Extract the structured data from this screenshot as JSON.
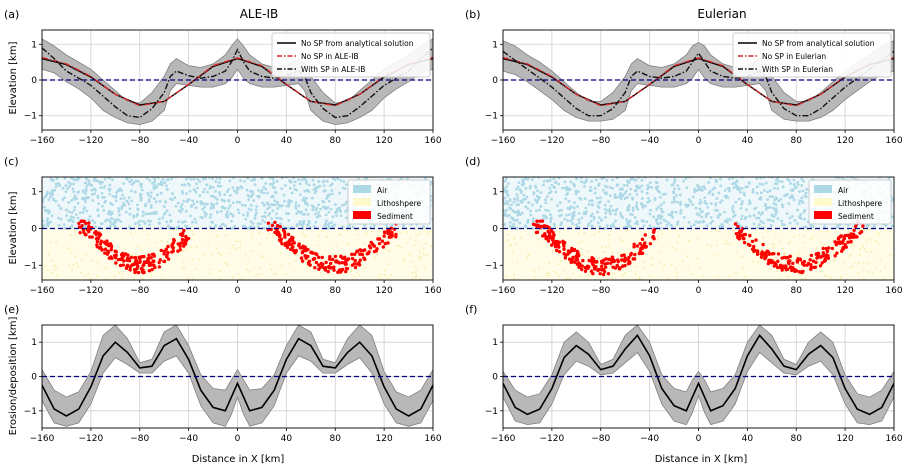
{
  "figure": {
    "col_titles": [
      "ALE-IB",
      "Eulerian"
    ],
    "xlabel": "Distance in X [km]",
    "row_ylabels": [
      "Elevation [km]",
      "Elevation [km]",
      "Erosion/deposition [km]"
    ],
    "x_ticks": [
      -160,
      -120,
      -80,
      -40,
      0,
      40,
      80,
      120,
      160
    ],
    "colors": {
      "analytical": "#000000",
      "nosp": "#d62728",
      "withsp": "#111111",
      "band": "#b8b8b8",
      "sea": "#000080",
      "air": "#add8e6",
      "litho": "#fffacd",
      "sediment": "#ff0000"
    }
  },
  "chart_data": [
    {
      "panel": "(a)",
      "title": "ALE-IB",
      "type": "line",
      "xlim": [
        -160,
        160
      ],
      "ylim": [
        -1.4,
        1.4
      ],
      "yticks": [
        -1,
        0,
        1
      ],
      "ylabel": "Elevation [km]",
      "grid": true,
      "legend": "top-right",
      "legend_entries": [
        "No SP from analytical solution",
        "No SP in ALE-IB",
        "With SP in ALE-IB"
      ],
      "series": [
        {
          "name": "No SP from analytical solution",
          "style": "solid",
          "x": [
            -160,
            -140,
            -120,
            -100,
            -80,
            -60,
            -40,
            -20,
            0,
            20,
            40,
            60,
            80,
            100,
            120,
            140,
            160
          ],
          "y": [
            0.6,
            0.43,
            0.08,
            -0.4,
            -0.7,
            -0.6,
            -0.13,
            0.38,
            0.6,
            0.38,
            -0.13,
            -0.6,
            -0.7,
            -0.4,
            0.08,
            0.43,
            0.6
          ]
        },
        {
          "name": "No SP in ALE-IB",
          "style": "dashdot",
          "x": [
            -160,
            -140,
            -120,
            -100,
            -80,
            -60,
            -40,
            -20,
            0,
            20,
            40,
            60,
            80,
            100,
            120,
            140,
            160
          ],
          "y": [
            0.63,
            0.45,
            0.1,
            -0.4,
            -0.72,
            -0.6,
            -0.12,
            0.4,
            0.62,
            0.4,
            -0.12,
            -0.6,
            -0.72,
            -0.4,
            0.1,
            0.45,
            0.63
          ]
        },
        {
          "name": "With SP in ALE-IB",
          "style": "dashdot",
          "x": [
            -160,
            -150,
            -140,
            -130,
            -120,
            -110,
            -100,
            -90,
            -80,
            -70,
            -60,
            -55,
            -50,
            -40,
            -30,
            -20,
            -10,
            -5,
            0,
            5,
            10,
            20,
            30,
            40,
            50,
            55,
            60,
            70,
            80,
            90,
            100,
            110,
            120,
            130,
            140,
            150,
            160
          ],
          "y": [
            0.9,
            0.6,
            0.25,
            0.05,
            -0.15,
            -0.45,
            -0.75,
            -1.0,
            -1.05,
            -0.8,
            -0.35,
            0.1,
            0.25,
            0.12,
            0.05,
            0.1,
            0.25,
            0.5,
            0.85,
            0.5,
            0.25,
            0.1,
            0.05,
            0.12,
            0.25,
            0.1,
            -0.35,
            -0.8,
            -1.05,
            -1.0,
            -0.75,
            -0.45,
            -0.15,
            0.05,
            0.25,
            0.6,
            0.9
          ]
        }
      ],
      "band": {
        "x": [
          -160,
          -150,
          -140,
          -130,
          -120,
          -110,
          -100,
          -90,
          -80,
          -70,
          -60,
          -55,
          -50,
          -40,
          -30,
          -20,
          -10,
          -5,
          0,
          5,
          10,
          20,
          30,
          40,
          50,
          55,
          60,
          70,
          80,
          90,
          100,
          110,
          120,
          130,
          140,
          150,
          160
        ],
        "upper": [
          1.15,
          0.95,
          0.7,
          0.5,
          0.3,
          0.0,
          -0.3,
          -0.6,
          -0.65,
          -0.35,
          0.1,
          0.45,
          0.6,
          0.4,
          0.35,
          0.45,
          0.7,
          0.95,
          1.15,
          0.95,
          0.7,
          0.45,
          0.35,
          0.4,
          0.6,
          0.45,
          0.1,
          -0.35,
          -0.65,
          -0.6,
          -0.3,
          0.0,
          0.3,
          0.5,
          0.7,
          0.95,
          1.15
        ],
        "lower": [
          0.3,
          0.2,
          -0.05,
          -0.25,
          -0.5,
          -0.85,
          -1.05,
          -1.2,
          -1.25,
          -1.15,
          -0.85,
          -0.3,
          -0.1,
          -0.15,
          -0.2,
          -0.2,
          -0.1,
          0.05,
          0.3,
          0.05,
          -0.1,
          -0.2,
          -0.2,
          -0.15,
          -0.1,
          -0.3,
          -0.85,
          -1.15,
          -1.25,
          -1.2,
          -1.05,
          -0.85,
          -0.5,
          -0.25,
          -0.05,
          0.2,
          0.3
        ]
      },
      "hline": 0
    },
    {
      "panel": "(b)",
      "title": "Eulerian",
      "type": "line",
      "xlim": [
        -160,
        160
      ],
      "ylim": [
        -1.4,
        1.4
      ],
      "yticks": [
        -1,
        0,
        1
      ],
      "ylabel": "",
      "grid": true,
      "legend": "top-right",
      "legend_entries": [
        "No SP from analytical solution",
        "No SP in Eulerian",
        "With SP in Eulerian"
      ],
      "series": [
        {
          "name": "No SP from analytical solution",
          "style": "solid",
          "x": [
            -160,
            -140,
            -120,
            -100,
            -80,
            -60,
            -40,
            -20,
            0,
            20,
            40,
            60,
            80,
            100,
            120,
            140,
            160
          ],
          "y": [
            0.6,
            0.43,
            0.08,
            -0.4,
            -0.7,
            -0.6,
            -0.13,
            0.38,
            0.6,
            0.38,
            -0.13,
            -0.6,
            -0.7,
            -0.4,
            0.08,
            0.43,
            0.6
          ]
        },
        {
          "name": "No SP in Eulerian",
          "style": "dashdot",
          "x": [
            -160,
            -140,
            -120,
            -100,
            -80,
            -60,
            -40,
            -20,
            0,
            20,
            40,
            60,
            80,
            100,
            120,
            140,
            160
          ],
          "y": [
            0.63,
            0.45,
            0.1,
            -0.4,
            -0.72,
            -0.6,
            -0.12,
            0.4,
            0.62,
            0.4,
            -0.12,
            -0.6,
            -0.72,
            -0.4,
            0.1,
            0.45,
            0.63
          ]
        },
        {
          "name": "With SP in Eulerian",
          "style": "dashdot",
          "x": [
            -160,
            -150,
            -140,
            -130,
            -120,
            -110,
            -100,
            -90,
            -80,
            -70,
            -60,
            -55,
            -50,
            -40,
            -30,
            -20,
            -10,
            -5,
            0,
            5,
            10,
            20,
            30,
            40,
            50,
            55,
            60,
            70,
            80,
            90,
            100,
            110,
            120,
            130,
            140,
            150,
            160
          ],
          "y": [
            0.8,
            0.55,
            0.3,
            0.05,
            -0.2,
            -0.5,
            -0.8,
            -1.0,
            -1.0,
            -0.8,
            -0.35,
            0.1,
            0.25,
            0.1,
            0.05,
            0.1,
            0.25,
            0.5,
            0.75,
            0.5,
            0.25,
            0.1,
            0.05,
            0.1,
            0.25,
            0.1,
            -0.35,
            -0.8,
            -1.0,
            -1.0,
            -0.8,
            -0.5,
            -0.2,
            0.05,
            0.3,
            0.55,
            0.8
          ]
        }
      ],
      "band": {
        "x": [
          -160,
          -150,
          -140,
          -130,
          -120,
          -110,
          -100,
          -90,
          -80,
          -70,
          -60,
          -55,
          -50,
          -40,
          -30,
          -20,
          -10,
          -5,
          0,
          5,
          10,
          20,
          30,
          40,
          50,
          55,
          60,
          70,
          80,
          90,
          100,
          110,
          120,
          130,
          140,
          150,
          160
        ],
        "upper": [
          1.1,
          0.95,
          0.7,
          0.5,
          0.25,
          -0.05,
          -0.35,
          -0.6,
          -0.6,
          -0.35,
          0.1,
          0.45,
          0.6,
          0.4,
          0.35,
          0.45,
          0.7,
          0.95,
          1.05,
          0.95,
          0.7,
          0.45,
          0.35,
          0.4,
          0.6,
          0.45,
          0.1,
          -0.35,
          -0.6,
          -0.6,
          -0.35,
          -0.05,
          0.25,
          0.5,
          0.7,
          0.95,
          1.1
        ],
        "lower": [
          0.25,
          0.15,
          -0.05,
          -0.3,
          -0.55,
          -0.85,
          -1.05,
          -1.15,
          -1.15,
          -1.1,
          -0.85,
          -0.3,
          -0.1,
          -0.15,
          -0.2,
          -0.2,
          -0.1,
          0.05,
          0.3,
          0.05,
          -0.1,
          -0.2,
          -0.2,
          -0.15,
          -0.1,
          -0.3,
          -0.85,
          -1.1,
          -1.15,
          -1.15,
          -1.05,
          -0.85,
          -0.55,
          -0.3,
          -0.05,
          0.15,
          0.25
        ]
      },
      "hline": 0
    },
    {
      "panel": "(c)",
      "type": "scatter",
      "xlim": [
        -160,
        160
      ],
      "ylim": [
        -1.4,
        1.4
      ],
      "yticks": [
        -1,
        0,
        1
      ],
      "ylabel": "Elevation [km]",
      "grid": false,
      "legend": "top-right",
      "legend_entries": [
        "Air",
        "Lithoshpere",
        "Sediment"
      ],
      "sediment_basins": [
        {
          "x_from": -130,
          "x_to": -40,
          "center": -80,
          "depth": -1.05
        },
        {
          "x_from": 25,
          "x_to": 130,
          "center": 80,
          "depth": -1.05
        }
      ],
      "hline": 0
    },
    {
      "panel": "(d)",
      "type": "scatter",
      "xlim": [
        -160,
        160
      ],
      "ylim": [
        -1.4,
        1.4
      ],
      "yticks": [
        -1,
        0,
        1
      ],
      "ylabel": "",
      "grid": false,
      "legend": "top-right",
      "legend_entries": [
        "Air",
        "Lithoshpere",
        "Sediment"
      ],
      "sediment_basins": [
        {
          "x_from": -135,
          "x_to": -35,
          "center": -80,
          "depth": -1.1
        },
        {
          "x_from": 30,
          "x_to": 135,
          "center": 80,
          "depth": -1.05
        }
      ],
      "hline": 0
    },
    {
      "panel": "(e)",
      "type": "line",
      "xlim": [
        -160,
        160
      ],
      "ylim": [
        -1.5,
        1.5
      ],
      "yticks": [
        -1,
        0,
        1
      ],
      "ylabel": "Erosion/deposition [km]",
      "grid": true,
      "series": [
        {
          "name": "",
          "style": "solid",
          "x": [
            -160,
            -150,
            -140,
            -130,
            -120,
            -110,
            -100,
            -90,
            -80,
            -70,
            -60,
            -50,
            -40,
            -30,
            -20,
            -10,
            -5,
            0,
            5,
            10,
            20,
            30,
            40,
            50,
            60,
            70,
            80,
            90,
            100,
            110,
            120,
            130,
            140,
            150,
            160
          ],
          "y": [
            -0.25,
            -0.95,
            -1.15,
            -0.95,
            -0.3,
            0.6,
            1.0,
            0.7,
            0.25,
            0.3,
            0.9,
            1.1,
            0.5,
            -0.4,
            -0.9,
            -1.0,
            -0.6,
            -0.2,
            -0.6,
            -1.0,
            -0.9,
            -0.4,
            0.5,
            1.1,
            0.9,
            0.3,
            0.25,
            0.7,
            1.0,
            0.6,
            -0.3,
            -0.95,
            -1.15,
            -0.95,
            -0.25
          ]
        }
      ],
      "band": {
        "x": [
          -160,
          -150,
          -140,
          -130,
          -120,
          -110,
          -100,
          -90,
          -80,
          -70,
          -60,
          -50,
          -40,
          -30,
          -20,
          -10,
          -5,
          0,
          5,
          10,
          20,
          30,
          40,
          50,
          60,
          70,
          80,
          90,
          100,
          110,
          120,
          130,
          140,
          150,
          160
        ],
        "upper": [
          0.2,
          -0.4,
          -0.6,
          -0.45,
          0.15,
          1.2,
          1.5,
          1.1,
          0.4,
          0.5,
          1.3,
          1.5,
          0.9,
          0.05,
          -0.35,
          -0.4,
          -0.1,
          0.2,
          -0.1,
          -0.4,
          -0.35,
          0.05,
          0.9,
          1.5,
          1.3,
          0.5,
          0.4,
          1.1,
          1.5,
          1.2,
          0.15,
          -0.45,
          -0.6,
          -0.4,
          0.2
        ],
        "lower": [
          -0.7,
          -1.35,
          -1.45,
          -1.35,
          -0.8,
          0.1,
          0.55,
          0.35,
          0.1,
          0.1,
          0.45,
          0.6,
          0.1,
          -0.85,
          -1.35,
          -1.45,
          -1.1,
          -0.6,
          -1.1,
          -1.45,
          -1.35,
          -0.85,
          0.1,
          0.6,
          0.45,
          0.1,
          0.1,
          0.35,
          0.55,
          0.1,
          -0.8,
          -1.35,
          -1.45,
          -1.35,
          -0.7
        ]
      },
      "hline": 0
    },
    {
      "panel": "(f)",
      "type": "line",
      "xlim": [
        -160,
        160
      ],
      "ylim": [
        -1.5,
        1.5
      ],
      "yticks": [
        -1,
        0,
        1
      ],
      "ylabel": "",
      "grid": true,
      "series": [
        {
          "name": "",
          "style": "solid",
          "x": [
            -160,
            -150,
            -140,
            -130,
            -120,
            -110,
            -100,
            -90,
            -80,
            -70,
            -60,
            -50,
            -40,
            -30,
            -20,
            -10,
            -5,
            0,
            5,
            10,
            20,
            30,
            40,
            50,
            60,
            70,
            80,
            90,
            100,
            110,
            120,
            130,
            140,
            150,
            160
          ],
          "y": [
            -0.2,
            -0.9,
            -1.1,
            -0.95,
            -0.35,
            0.55,
            0.9,
            0.65,
            0.2,
            0.3,
            0.8,
            1.2,
            0.6,
            -0.35,
            -0.85,
            -1.0,
            -0.6,
            -0.2,
            -0.6,
            -1.0,
            -0.85,
            -0.35,
            0.6,
            1.2,
            0.8,
            0.3,
            0.2,
            0.65,
            0.9,
            0.55,
            -0.35,
            -0.95,
            -1.1,
            -0.9,
            -0.2
          ]
        }
      ],
      "band": {
        "x": [
          -160,
          -150,
          -140,
          -130,
          -120,
          -110,
          -100,
          -90,
          -80,
          -70,
          -60,
          -50,
          -40,
          -30,
          -20,
          -10,
          -5,
          0,
          5,
          10,
          20,
          30,
          40,
          50,
          60,
          70,
          80,
          90,
          100,
          110,
          120,
          130,
          140,
          150,
          160
        ],
        "upper": [
          0.15,
          -0.4,
          -0.6,
          -0.5,
          0.05,
          1.0,
          1.3,
          1.0,
          0.35,
          0.5,
          1.2,
          1.5,
          1.0,
          0.05,
          -0.35,
          -0.45,
          -0.1,
          0.15,
          -0.1,
          -0.45,
          -0.35,
          0.05,
          1.0,
          1.5,
          1.2,
          0.5,
          0.35,
          1.0,
          1.3,
          1.0,
          0.05,
          -0.5,
          -0.6,
          -0.4,
          0.15
        ],
        "lower": [
          -0.6,
          -1.3,
          -1.4,
          -1.35,
          -0.8,
          0.05,
          0.45,
          0.3,
          0.05,
          0.1,
          0.4,
          0.7,
          0.15,
          -0.8,
          -1.3,
          -1.4,
          -1.05,
          -0.55,
          -1.05,
          -1.4,
          -1.3,
          -0.8,
          0.15,
          0.7,
          0.4,
          0.1,
          0.05,
          0.3,
          0.45,
          0.05,
          -0.8,
          -1.35,
          -1.4,
          -1.3,
          -0.6
        ]
      },
      "hline": 0
    }
  ]
}
